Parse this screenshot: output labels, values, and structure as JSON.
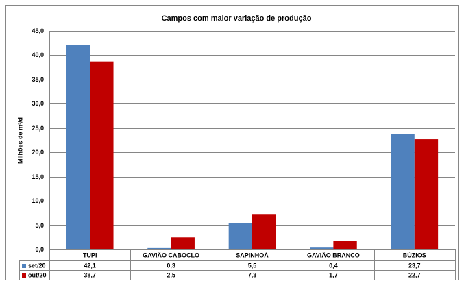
{
  "chart_data": {
    "type": "bar",
    "title": "Campos com maior variação de produção",
    "y_label": "Milhões de m³/d",
    "categories": [
      "TUPI",
      "GAVIÃO CABOCLO",
      "SAPINHOÁ",
      "GAVIÃO BRANCO",
      "BÚZIOS"
    ],
    "series": [
      {
        "name": "set/20",
        "color": "#4f81bd",
        "values": [
          42.1,
          0.3,
          5.5,
          0.4,
          23.7
        ],
        "value_labels": [
          "42,1",
          "0,3",
          "5,5",
          "0,4",
          "23,7"
        ]
      },
      {
        "name": "out/20",
        "color": "#c00000",
        "values": [
          38.7,
          2.5,
          7.3,
          1.7,
          22.7
        ],
        "value_labels": [
          "38,7",
          "2,5",
          "7,3",
          "1,7",
          "22,7"
        ]
      }
    ],
    "ylim": [
      0,
      45
    ],
    "yticks": [
      {
        "value": 0,
        "label": "0,0"
      },
      {
        "value": 5,
        "label": "5,0"
      },
      {
        "value": 10,
        "label": "10,0"
      },
      {
        "value": 15,
        "label": "15,0"
      },
      {
        "value": 20,
        "label": "20,0"
      },
      {
        "value": 25,
        "label": "25,0"
      },
      {
        "value": 30,
        "label": "30,0"
      },
      {
        "value": 35,
        "label": "35,0"
      },
      {
        "value": 40,
        "label": "40,0"
      },
      {
        "value": 45,
        "label": "45,0"
      }
    ],
    "grid": true
  }
}
